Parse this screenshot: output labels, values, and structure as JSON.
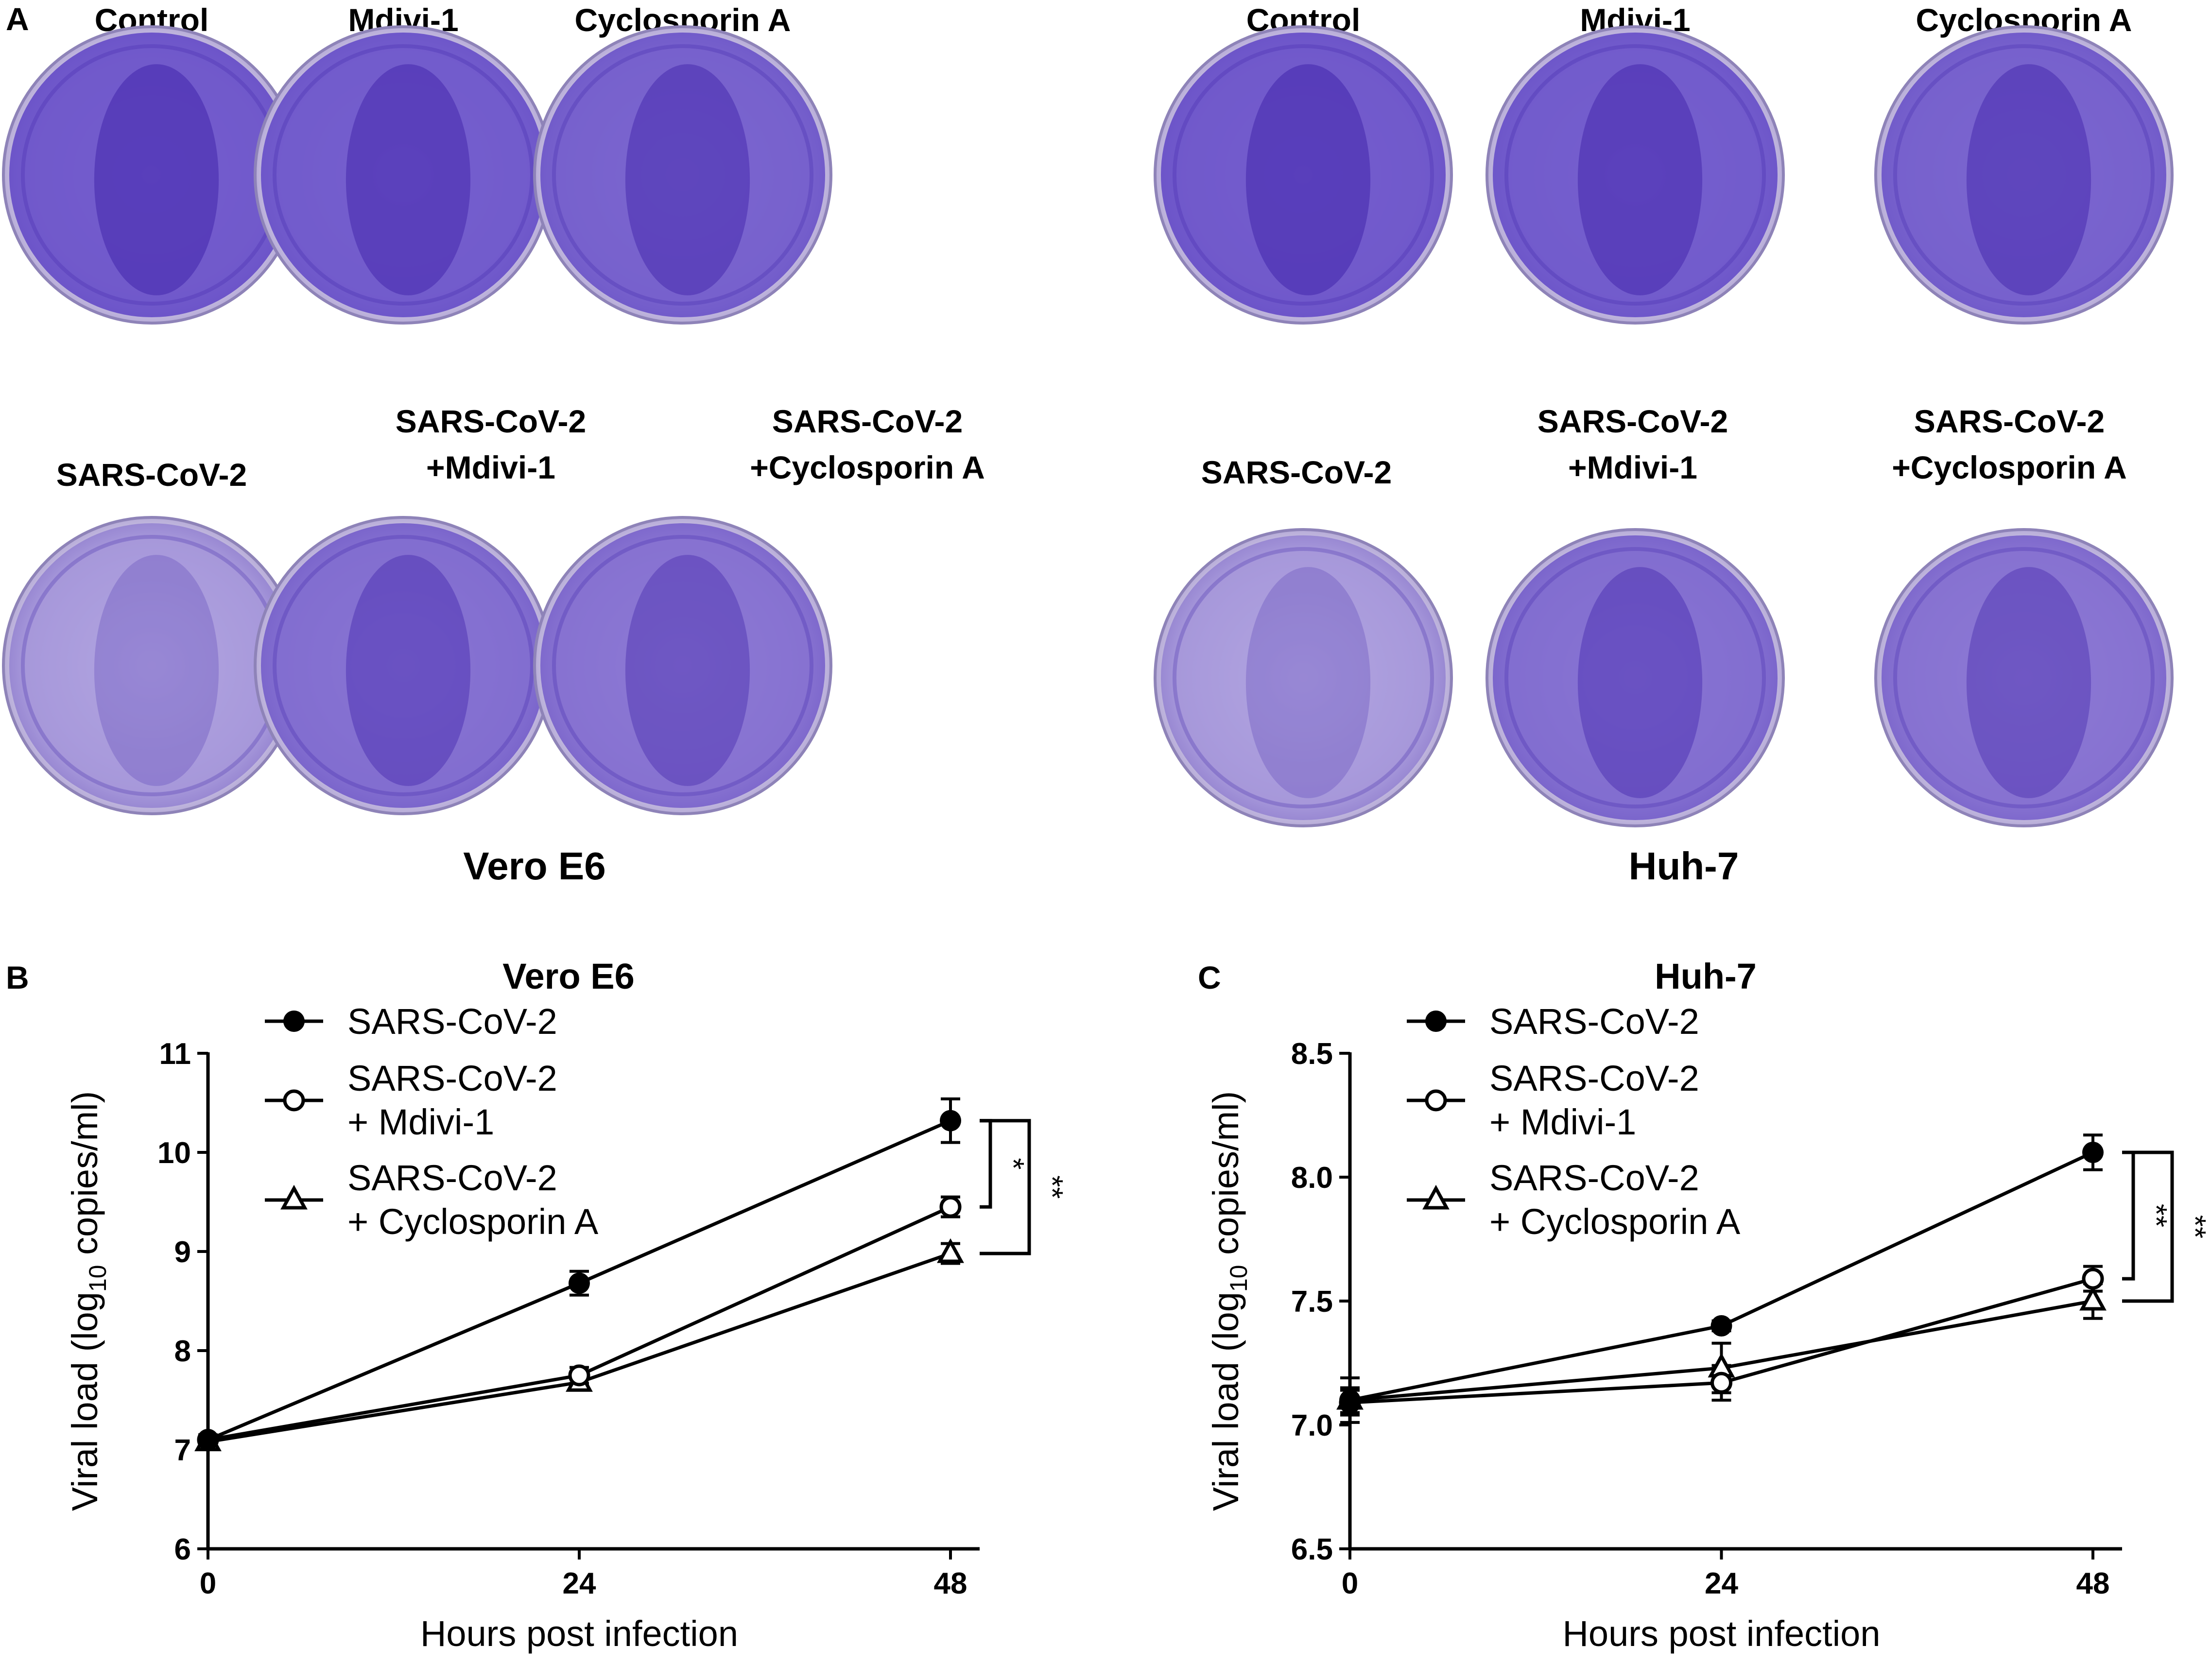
{
  "panel_labels": {
    "a": "A",
    "b": "B",
    "c": "C"
  },
  "panel_a": {
    "vero": {
      "cell_line": "Vero E6",
      "top_row": [
        "Control",
        "Mdivi-1",
        "Cyclosporin A"
      ],
      "bottom_row": [
        {
          "line1": "SARS-CoV-2",
          "line2": ""
        },
        {
          "line1": "SARS-CoV-2",
          "line2": "+Mdivi-1"
        },
        {
          "line1": "SARS-CoV-2",
          "line2": "+Cyclosporin A"
        }
      ]
    },
    "huh7": {
      "cell_line": "Huh-7",
      "top_row": [
        "Control",
        "Mdivi-1",
        "Cyclosporin A"
      ],
      "bottom_row": [
        {
          "line1": "SARS-CoV-2",
          "line2": ""
        },
        {
          "line1": "SARS-CoV-2",
          "line2": "+Mdivi-1"
        },
        {
          "line1": "SARS-CoV-2",
          "line2": "+Cyclosporin A"
        }
      ]
    },
    "dish_stain": [
      {
        "name": "control",
        "level": 0.95
      },
      {
        "name": "mdivi",
        "level": 0.92
      },
      {
        "name": "cyclosporin",
        "level": 0.85
      },
      {
        "name": "sars",
        "level": 0.2
      },
      {
        "name": "sars-mdivi",
        "level": 0.7
      },
      {
        "name": "sars-cyclosporin",
        "level": 0.65
      }
    ],
    "colors": {
      "stain": "#5a3fc4",
      "stain_dark": "#3d1fa8",
      "plate": "#d9d4ea"
    }
  },
  "chart_data": [
    {
      "type": "line",
      "title": "Vero E6",
      "xlabel": "Hours post infection",
      "ylabel_prefix": "Viral load (log",
      "ylabel_sub": "10",
      "ylabel_suffix": " copies/ml)",
      "x": [
        0,
        24,
        48
      ],
      "x_ticks": [
        "0",
        "24",
        "48"
      ],
      "ylim": [
        6,
        11
      ],
      "y_ticks": [
        "6",
        "7",
        "8",
        "9",
        "10",
        "11"
      ],
      "series": [
        {
          "name": "SARS-CoV-2",
          "marker": "filled-circle",
          "values": [
            7.1,
            8.68,
            10.32
          ],
          "errors": [
            0.05,
            0.12,
            0.22
          ]
        },
        {
          "name": "SARS-CoV-2\n+ Mdivi-1",
          "marker": "open-circle",
          "values": [
            7.1,
            7.75,
            9.45
          ],
          "errors": [
            0.05,
            0.08,
            0.1
          ]
        },
        {
          "name": "SARS-CoV-2\n+ Cyclosporin A",
          "marker": "open-triangle",
          "values": [
            7.08,
            7.68,
            8.98
          ],
          "errors": [
            0.05,
            0.07,
            0.1
          ]
        }
      ],
      "legend": [
        {
          "line1": "SARS-CoV-2",
          "line2": ""
        },
        {
          "line1": "SARS-CoV-2",
          "line2": "+ Mdivi-1"
        },
        {
          "line1": "SARS-CoV-2",
          "line2": "+ Cyclosporin A"
        }
      ],
      "significance": [
        {
          "from_series": 0,
          "to_series": 1,
          "label": "*"
        },
        {
          "from_series": 0,
          "to_series": 2,
          "label": "**"
        }
      ]
    },
    {
      "type": "line",
      "title": "Huh-7",
      "xlabel": "Hours post infection",
      "ylabel_prefix": "Viral load (log",
      "ylabel_sub": "10",
      "ylabel_suffix": " copies/ml)",
      "x": [
        0,
        24,
        48
      ],
      "x_ticks": [
        "0",
        "24",
        "48"
      ],
      "ylim": [
        6.5,
        8.5
      ],
      "y_ticks": [
        "6.5",
        "7.0",
        "7.5",
        "8.0",
        "8.5"
      ],
      "series": [
        {
          "name": "SARS-CoV-2",
          "marker": "filled-circle",
          "values": [
            7.1,
            7.4,
            8.1
          ],
          "errors": [
            0.05,
            0.02,
            0.07
          ]
        },
        {
          "name": "SARS-CoV-2\n+ Mdivi-1",
          "marker": "open-circle",
          "values": [
            7.09,
            7.17,
            7.59
          ],
          "errors": [
            0.05,
            0.07,
            0.05
          ]
        },
        {
          "name": "SARS-CoV-2\n+ Cyclosporin A",
          "marker": "open-triangle",
          "values": [
            7.1,
            7.23,
            7.5
          ],
          "errors": [
            0.09,
            0.1,
            0.07
          ]
        }
      ],
      "legend": [
        {
          "line1": "SARS-CoV-2",
          "line2": ""
        },
        {
          "line1": "SARS-CoV-2",
          "line2": "+ Mdivi-1"
        },
        {
          "line1": "SARS-CoV-2",
          "line2": "+ Cyclosporin A"
        }
      ],
      "significance": [
        {
          "from_series": 0,
          "to_series": 1,
          "label": "**"
        },
        {
          "from_series": 0,
          "to_series": 2,
          "label": "**"
        }
      ]
    }
  ]
}
